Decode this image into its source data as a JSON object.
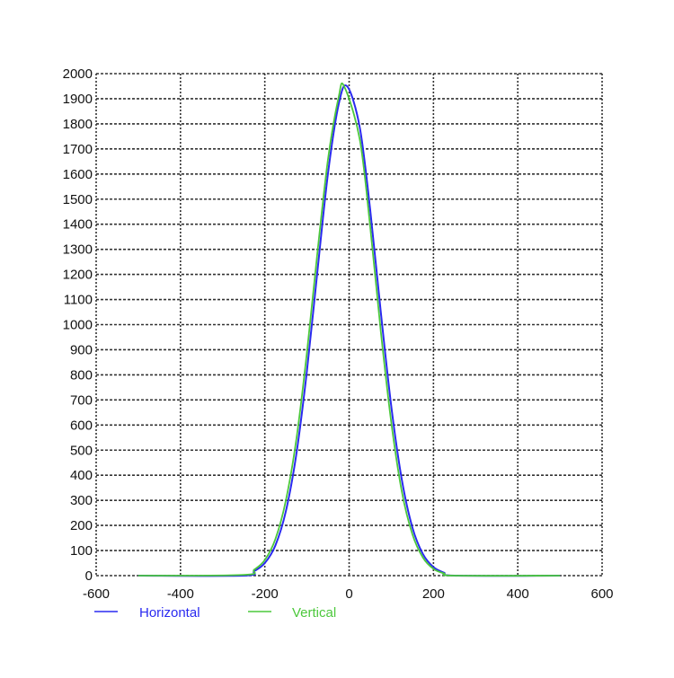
{
  "chart_data": {
    "type": "line",
    "title": "",
    "xlabel": "",
    "ylabel": "",
    "xlim": [
      -600,
      600
    ],
    "ylim": [
      0,
      2000
    ],
    "xticks": [
      -600,
      -400,
      -200,
      0,
      200,
      400,
      600
    ],
    "yticks": [
      0,
      100,
      200,
      300,
      400,
      500,
      600,
      700,
      800,
      900,
      1000,
      1100,
      1200,
      1300,
      1400,
      1500,
      1600,
      1700,
      1800,
      1900,
      2000
    ],
    "grid": true,
    "legend_position": "bottom",
    "series": [
      {
        "name": "Horizontal",
        "color": "#2a2af0",
        "x": [
          -500,
          -250,
          -225,
          -200,
          -175,
          -150,
          -125,
          -100,
          -75,
          -50,
          -25,
          -5,
          25,
          50,
          75,
          100,
          125,
          150,
          175,
          200,
          225,
          250,
          500
        ],
        "y": [
          0,
          0,
          18,
          50,
          120,
          257,
          486,
          817,
          1216,
          1604,
          1876,
          1950,
          1788,
          1457,
          1052,
          674,
          382,
          192,
          86,
          34,
          12,
          0,
          0
        ]
      },
      {
        "name": "Vertical",
        "color": "#4cc83c",
        "x": [
          -500,
          -250,
          -225,
          -200,
          -175,
          -150,
          -125,
          -100,
          -75,
          -50,
          -25,
          -12,
          25,
          50,
          75,
          100,
          125,
          150,
          175,
          200,
          225,
          250,
          500
        ],
        "y": [
          0,
          3,
          24,
          62,
          145,
          300,
          545,
          890,
          1290,
          1660,
          1905,
          1950,
          1740,
          1390,
          975,
          610,
          335,
          165,
          72,
          27,
          9,
          0,
          0
        ]
      }
    ]
  }
}
